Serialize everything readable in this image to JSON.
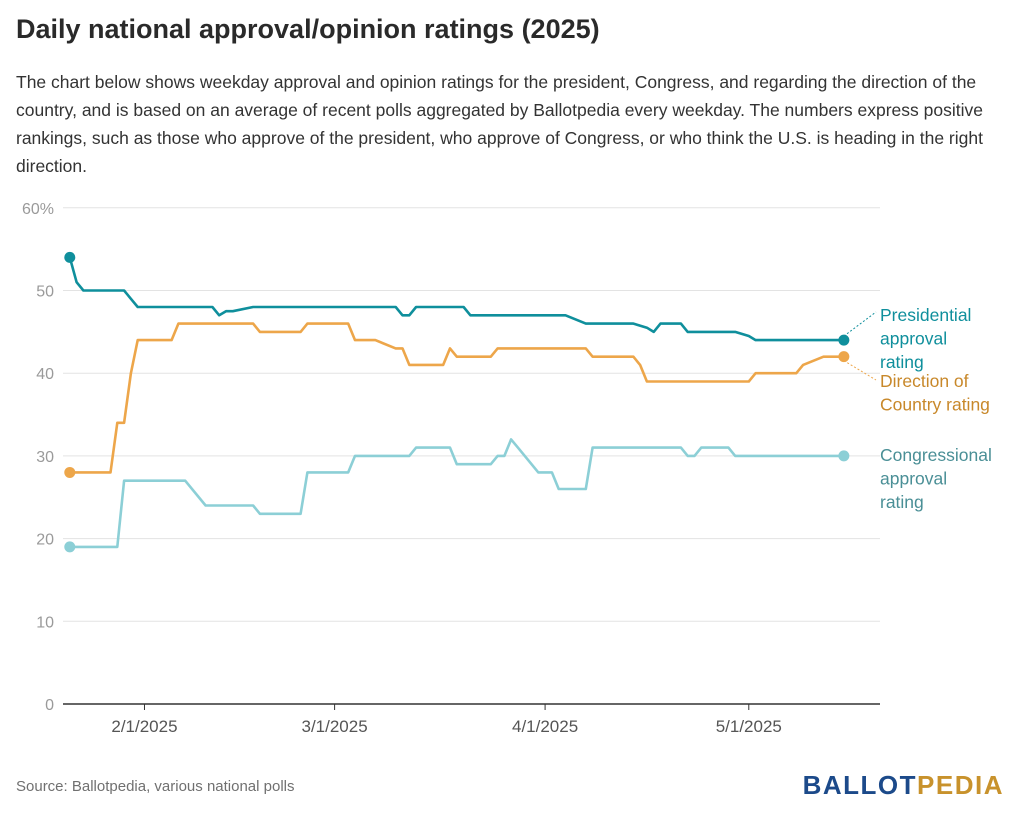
{
  "header": {
    "title": "Daily national approval/opinion ratings (2025)",
    "description": "The chart below shows weekday approval and opinion ratings for the president, Congress, and regarding the direction of the country, and is based on an average of recent polls aggregated by Ballotpedia every weekday. The numbers express positive rankings, such as those who approve of the president, who approve of Congress, or who think the U.S. is heading in the right direction."
  },
  "footer": {
    "source": "Source: Ballotpedia, various national polls",
    "logo_left": "BALLOT",
    "logo_right": "PEDIA"
  },
  "colors": {
    "presidential": "#0f8f9c",
    "direction": "#eda64a",
    "congressional": "#8ccfd6",
    "presidential_label": "#0f8f9c",
    "direction_label": "#c8882a",
    "congressional_label": "#4a8f96",
    "grid": "#e3e3e3",
    "axis": "#333333"
  },
  "chart_data": {
    "type": "line",
    "title": "Daily national approval/opinion ratings (2025)",
    "xlabel": "",
    "ylabel": "",
    "x_range": [
      "2025-01-20",
      "2025-05-16"
    ],
    "ylim": [
      0,
      60
    ],
    "y_ticks": [
      0,
      10,
      20,
      30,
      40,
      50,
      60
    ],
    "y_tick_labels": [
      "0",
      "10",
      "20",
      "30",
      "40",
      "50",
      "60%"
    ],
    "x_ticks": [
      "2025-02-01",
      "2025-03-01",
      "2025-04-01",
      "2025-05-01"
    ],
    "x_tick_labels": [
      "2/1/2025",
      "3/1/2025",
      "4/1/2025",
      "5/1/2025"
    ],
    "grid": "horizontal",
    "series": [
      {
        "key": "presidential",
        "name": "Presidential approval rating",
        "label_lines": [
          "Presidential",
          "approval",
          "rating"
        ],
        "points": [
          [
            "2025-01-21",
            54
          ],
          [
            "2025-01-22",
            51
          ],
          [
            "2025-01-23",
            50
          ],
          [
            "2025-01-24",
            50
          ],
          [
            "2025-01-27",
            50
          ],
          [
            "2025-01-28",
            50
          ],
          [
            "2025-01-29",
            50
          ],
          [
            "2025-01-30",
            49
          ],
          [
            "2025-01-31",
            48
          ],
          [
            "2025-02-03",
            48
          ],
          [
            "2025-02-05",
            48
          ],
          [
            "2025-02-06",
            48
          ],
          [
            "2025-02-07",
            48
          ],
          [
            "2025-02-10",
            48
          ],
          [
            "2025-02-11",
            48
          ],
          [
            "2025-02-12",
            47
          ],
          [
            "2025-02-13",
            47.5
          ],
          [
            "2025-02-14",
            47.5
          ],
          [
            "2025-02-17",
            48
          ],
          [
            "2025-02-21",
            48
          ],
          [
            "2025-02-24",
            48
          ],
          [
            "2025-02-28",
            48
          ],
          [
            "2025-03-04",
            48
          ],
          [
            "2025-03-07",
            48
          ],
          [
            "2025-03-10",
            48
          ],
          [
            "2025-03-11",
            47
          ],
          [
            "2025-03-12",
            47
          ],
          [
            "2025-03-13",
            48
          ],
          [
            "2025-03-17",
            48
          ],
          [
            "2025-03-20",
            48
          ],
          [
            "2025-03-21",
            47
          ],
          [
            "2025-03-24",
            47
          ],
          [
            "2025-03-28",
            47
          ],
          [
            "2025-04-01",
            47
          ],
          [
            "2025-04-03",
            47
          ],
          [
            "2025-04-04",
            47
          ],
          [
            "2025-04-07",
            46
          ],
          [
            "2025-04-10",
            46
          ],
          [
            "2025-04-14",
            46
          ],
          [
            "2025-04-16",
            45.5
          ],
          [
            "2025-04-17",
            45
          ],
          [
            "2025-04-18",
            46
          ],
          [
            "2025-04-21",
            46
          ],
          [
            "2025-04-22",
            45
          ],
          [
            "2025-04-25",
            45
          ],
          [
            "2025-04-28",
            45
          ],
          [
            "2025-04-29",
            45
          ],
          [
            "2025-05-01",
            44.5
          ],
          [
            "2025-05-02",
            44
          ],
          [
            "2025-05-05",
            44
          ],
          [
            "2025-05-09",
            44
          ],
          [
            "2025-05-12",
            44
          ],
          [
            "2025-05-15",
            44
          ]
        ]
      },
      {
        "key": "direction",
        "name": "Direction of Country rating",
        "label_lines": [
          "Direction of",
          "Country rating"
        ],
        "points": [
          [
            "2025-01-21",
            28
          ],
          [
            "2025-01-24",
            28
          ],
          [
            "2025-01-27",
            28
          ],
          [
            "2025-01-28",
            34
          ],
          [
            "2025-01-29",
            34
          ],
          [
            "2025-01-30",
            40
          ],
          [
            "2025-01-31",
            44
          ],
          [
            "2025-02-03",
            44
          ],
          [
            "2025-02-05",
            44
          ],
          [
            "2025-02-06",
            46
          ],
          [
            "2025-02-10",
            46
          ],
          [
            "2025-02-14",
            46
          ],
          [
            "2025-02-17",
            46
          ],
          [
            "2025-02-18",
            45
          ],
          [
            "2025-02-21",
            45
          ],
          [
            "2025-02-24",
            45
          ],
          [
            "2025-02-25",
            46
          ],
          [
            "2025-02-28",
            46
          ],
          [
            "2025-03-03",
            46
          ],
          [
            "2025-03-04",
            44
          ],
          [
            "2025-03-07",
            44
          ],
          [
            "2025-03-10",
            43
          ],
          [
            "2025-03-11",
            43
          ],
          [
            "2025-03-12",
            41
          ],
          [
            "2025-03-14",
            41
          ],
          [
            "2025-03-17",
            41
          ],
          [
            "2025-03-18",
            43
          ],
          [
            "2025-03-19",
            42
          ],
          [
            "2025-03-21",
            42
          ],
          [
            "2025-03-24",
            42
          ],
          [
            "2025-03-25",
            43
          ],
          [
            "2025-03-28",
            43
          ],
          [
            "2025-04-01",
            43
          ],
          [
            "2025-04-04",
            43
          ],
          [
            "2025-04-07",
            43
          ],
          [
            "2025-04-08",
            42
          ],
          [
            "2025-04-11",
            42
          ],
          [
            "2025-04-14",
            42
          ],
          [
            "2025-04-15",
            41
          ],
          [
            "2025-04-16",
            39
          ],
          [
            "2025-04-18",
            39
          ],
          [
            "2025-04-21",
            39
          ],
          [
            "2025-04-25",
            39
          ],
          [
            "2025-04-28",
            39
          ],
          [
            "2025-04-29",
            39
          ],
          [
            "2025-05-01",
            39
          ],
          [
            "2025-05-02",
            40
          ],
          [
            "2025-05-05",
            40
          ],
          [
            "2025-05-07",
            40
          ],
          [
            "2025-05-08",
            40
          ],
          [
            "2025-05-09",
            41
          ],
          [
            "2025-05-12",
            42
          ],
          [
            "2025-05-15",
            42
          ]
        ]
      },
      {
        "key": "congressional",
        "name": "Congressional approval rating",
        "label_lines": [
          "Congressional",
          "approval",
          "rating"
        ],
        "points": [
          [
            "2025-01-21",
            19
          ],
          [
            "2025-01-24",
            19
          ],
          [
            "2025-01-27",
            19
          ],
          [
            "2025-01-28",
            19
          ],
          [
            "2025-01-29",
            27
          ],
          [
            "2025-01-31",
            27
          ],
          [
            "2025-02-03",
            27
          ],
          [
            "2025-02-05",
            27
          ],
          [
            "2025-02-06",
            27
          ],
          [
            "2025-02-07",
            27
          ],
          [
            "2025-02-10",
            24
          ],
          [
            "2025-02-14",
            24
          ],
          [
            "2025-02-17",
            24
          ],
          [
            "2025-02-18",
            23
          ],
          [
            "2025-02-21",
            23
          ],
          [
            "2025-02-24",
            23
          ],
          [
            "2025-02-25",
            28
          ],
          [
            "2025-02-28",
            28
          ],
          [
            "2025-03-03",
            28
          ],
          [
            "2025-03-04",
            30
          ],
          [
            "2025-03-07",
            30
          ],
          [
            "2025-03-10",
            30
          ],
          [
            "2025-03-11",
            30
          ],
          [
            "2025-03-12",
            30
          ],
          [
            "2025-03-13",
            31
          ],
          [
            "2025-03-17",
            31
          ],
          [
            "2025-03-18",
            31
          ],
          [
            "2025-03-19",
            29
          ],
          [
            "2025-03-21",
            29
          ],
          [
            "2025-03-24",
            29
          ],
          [
            "2025-03-25",
            30
          ],
          [
            "2025-03-26",
            30
          ],
          [
            "2025-03-27",
            32
          ],
          [
            "2025-03-28",
            31
          ],
          [
            "2025-03-31",
            28
          ],
          [
            "2025-04-01",
            28
          ],
          [
            "2025-04-02",
            28
          ],
          [
            "2025-04-03",
            26
          ],
          [
            "2025-04-04",
            26
          ],
          [
            "2025-04-07",
            26
          ],
          [
            "2025-04-08",
            31
          ],
          [
            "2025-04-11",
            31
          ],
          [
            "2025-04-14",
            31
          ],
          [
            "2025-04-18",
            31
          ],
          [
            "2025-04-21",
            31
          ],
          [
            "2025-04-22",
            30
          ],
          [
            "2025-04-23",
            30
          ],
          [
            "2025-04-24",
            31
          ],
          [
            "2025-04-28",
            31
          ],
          [
            "2025-04-29",
            30
          ],
          [
            "2025-05-01",
            30
          ],
          [
            "2025-05-05",
            30
          ],
          [
            "2025-05-09",
            30
          ],
          [
            "2025-05-12",
            30
          ],
          [
            "2025-05-15",
            30
          ]
        ]
      }
    ]
  }
}
